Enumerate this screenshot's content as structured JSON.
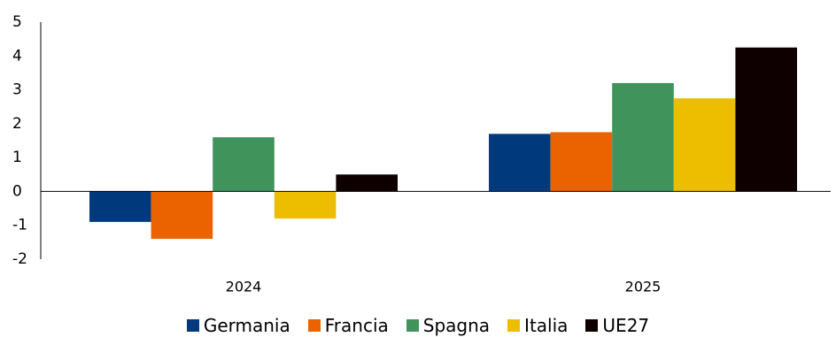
{
  "chart_data": {
    "type": "bar",
    "categories": [
      "2024",
      "2025"
    ],
    "series": [
      {
        "name": "Germania",
        "color": "#003A7D",
        "values": [
          -0.9,
          1.7
        ]
      },
      {
        "name": "Francia",
        "color": "#EA6300",
        "values": [
          -1.4,
          1.75
        ]
      },
      {
        "name": "Spagna",
        "color": "#41935C",
        "values": [
          1.6,
          3.2
        ]
      },
      {
        "name": "Italia",
        "color": "#EDBE00",
        "values": [
          -0.8,
          2.75
        ]
      },
      {
        "name": "UE27",
        "color": "#0E0000",
        "values": [
          0.5,
          4.25
        ]
      }
    ],
    "yticks": [
      5,
      4,
      3,
      2,
      1,
      0,
      -1,
      -2
    ],
    "ylim": [
      -2,
      5
    ],
    "title": "",
    "xlabel": "",
    "ylabel": "",
    "grid": false,
    "legend_position": "bottom"
  }
}
